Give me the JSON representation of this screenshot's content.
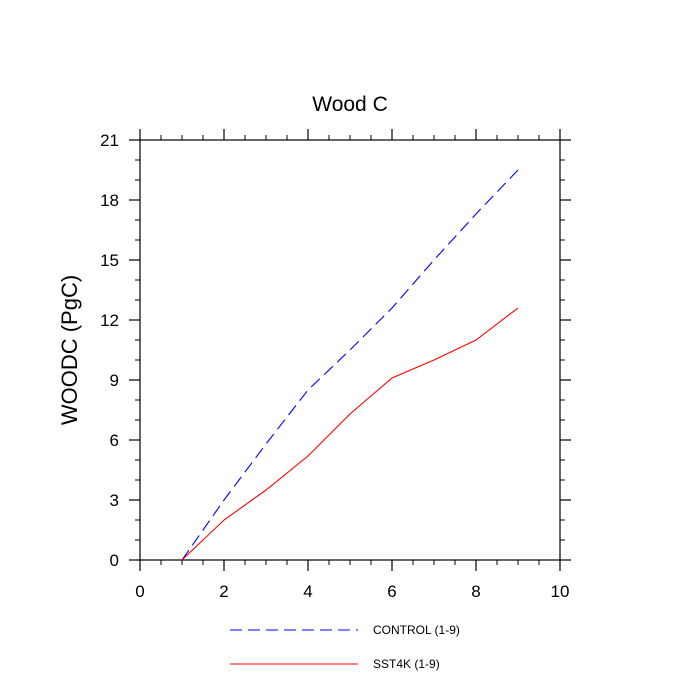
{
  "chart_data": {
    "type": "line",
    "title": "Wood C",
    "xlabel": "",
    "ylabel": "WOODC  (PgC)",
    "xlim": [
      0,
      10
    ],
    "ylim": [
      0,
      21
    ],
    "x_ticks": [
      0,
      2,
      4,
      6,
      8,
      10
    ],
    "y_ticks": [
      0,
      3,
      6,
      9,
      12,
      15,
      18,
      21
    ],
    "grid": false,
    "legend_position": "bottom",
    "series": [
      {
        "name": "CONTROL (1-9)",
        "color": "#0000ff",
        "dash": "dashed",
        "x": [
          1,
          2,
          3,
          4,
          5,
          6,
          7,
          8,
          9
        ],
        "y": [
          0,
          3.0,
          5.8,
          8.5,
          10.5,
          12.6,
          15.0,
          17.3,
          19.5
        ]
      },
      {
        "name": "SST4K (1-9)",
        "color": "#ff0000",
        "dash": "solid",
        "x": [
          1,
          2,
          3,
          4,
          5,
          6,
          7,
          8,
          9
        ],
        "y": [
          0,
          2.0,
          3.5,
          5.2,
          7.3,
          9.1,
          10.0,
          11.0,
          12.6
        ]
      }
    ]
  }
}
